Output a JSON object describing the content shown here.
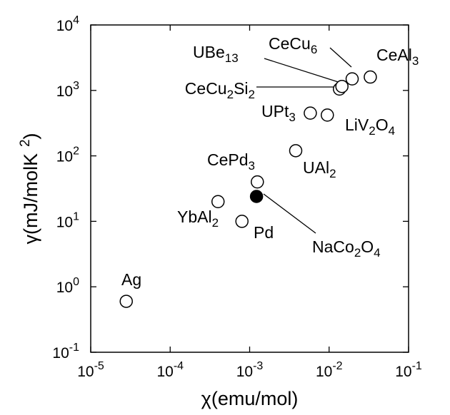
{
  "chart_data": {
    "type": "scatter",
    "xscale": "log",
    "yscale": "log",
    "xlim": [
      1e-05,
      0.1
    ],
    "ylim": [
      0.1,
      10000
    ],
    "grid": false,
    "xlabel": {
      "sym": "χ",
      "rest": "(emu/mol)"
    },
    "ylabel": {
      "sym": "γ",
      "rest": "(mJ/molK",
      "sup": "2",
      "close": ")"
    },
    "x_ticks": [
      {
        "value": 1e-05,
        "base": "10",
        "exp": "-5"
      },
      {
        "value": 0.0001,
        "base": "10",
        "exp": "-4"
      },
      {
        "value": 0.001,
        "base": "10",
        "exp": "-3"
      },
      {
        "value": 0.01,
        "base": "10",
        "exp": "-2"
      },
      {
        "value": 0.1,
        "base": "10",
        "exp": "-1"
      }
    ],
    "y_ticks": [
      {
        "value": 0.1,
        "base": "10",
        "exp": "-1"
      },
      {
        "value": 1,
        "base": "10",
        "exp": "0"
      },
      {
        "value": 10,
        "base": "10",
        "exp": "1"
      },
      {
        "value": 100,
        "base": "10",
        "exp": "2"
      },
      {
        "value": 1000,
        "base": "10",
        "exp": "3"
      },
      {
        "value": 10000,
        "base": "10",
        "exp": "4"
      }
    ],
    "points": [
      {
        "id": "ag",
        "x": 2.8e-05,
        "y": 0.6,
        "filled": false,
        "label": [
          {
            "t": "Ag"
          }
        ]
      },
      {
        "id": "ybal2",
        "x": 0.0004,
        "y": 20,
        "filled": false,
        "label": [
          {
            "t": "YbAl"
          },
          {
            "t": "2",
            "s": "sub"
          }
        ]
      },
      {
        "id": "pd",
        "x": 0.0008,
        "y": 10,
        "filled": false,
        "label": [
          {
            "t": "Pd"
          }
        ]
      },
      {
        "id": "cepd3",
        "x": 0.00125,
        "y": 40,
        "filled": false,
        "label": [
          {
            "t": "CePd"
          },
          {
            "t": "3",
            "s": "sub"
          }
        ]
      },
      {
        "id": "naco2o4",
        "x": 0.00122,
        "y": 24,
        "filled": true,
        "label": [
          {
            "t": "NaCo"
          },
          {
            "t": "2",
            "s": "sub"
          },
          {
            "t": "O"
          },
          {
            "t": "4",
            "s": "sub"
          }
        ]
      },
      {
        "id": "ual2",
        "x": 0.0038,
        "y": 120,
        "filled": false,
        "label": [
          {
            "t": "UAl"
          },
          {
            "t": "2",
            "s": "sub"
          }
        ]
      },
      {
        "id": "upt3",
        "x": 0.0058,
        "y": 450,
        "filled": false,
        "label": [
          {
            "t": "UPt"
          },
          {
            "t": "3",
            "s": "sub"
          }
        ]
      },
      {
        "id": "liv2o4",
        "x": 0.0095,
        "y": 420,
        "filled": false,
        "label": [
          {
            "t": "LiV"
          },
          {
            "t": "2",
            "s": "sub"
          },
          {
            "t": "O"
          },
          {
            "t": "4",
            "s": "sub"
          }
        ]
      },
      {
        "id": "cecu2si2",
        "x": 0.0135,
        "y": 1050,
        "filled": false,
        "label": [
          {
            "t": "CeCu"
          },
          {
            "t": "2",
            "s": "sub"
          },
          {
            "t": "Si"
          },
          {
            "t": "2",
            "s": "sub"
          }
        ]
      },
      {
        "id": "ube13",
        "x": 0.0145,
        "y": 1150,
        "filled": false,
        "label": [
          {
            "t": "UBe"
          },
          {
            "t": "13",
            "s": "sub"
          }
        ]
      },
      {
        "id": "cecu6",
        "x": 0.0195,
        "y": 1500,
        "filled": false,
        "label": [
          {
            "t": "CeCu"
          },
          {
            "t": "6",
            "s": "sub"
          }
        ]
      },
      {
        "id": "ceal3",
        "x": 0.033,
        "y": 1600,
        "filled": false,
        "label": [
          {
            "t": "CeAl"
          },
          {
            "t": "3",
            "s": "sub"
          }
        ]
      }
    ]
  }
}
